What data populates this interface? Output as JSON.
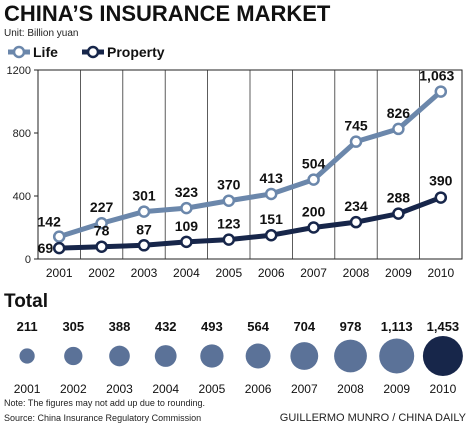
{
  "title": "CHINA’S INSURANCE MARKET",
  "unit": "Unit: Billion yuan",
  "colors": {
    "life": "#6b87ab",
    "property": "#17264a",
    "total_bubble": "#5b7298",
    "total_bubble_last": "#17264a"
  },
  "chart_data": [
    {
      "type": "line",
      "x": [
        "2001",
        "2002",
        "2003",
        "2004",
        "2005",
        "2006",
        "2007",
        "2008",
        "2009",
        "2010"
      ],
      "series": [
        {
          "name": "Life",
          "values": [
            142,
            227,
            301,
            323,
            370,
            413,
            504,
            745,
            826,
            1063
          ]
        },
        {
          "name": "Property",
          "values": [
            69,
            78,
            87,
            109,
            123,
            151,
            200,
            234,
            288,
            390
          ]
        }
      ],
      "data_labels": {
        "Life": [
          "142",
          "227",
          "301",
          "323",
          "370",
          "413",
          "504",
          "745",
          "826",
          "1,063"
        ],
        "Property": [
          "69",
          "78",
          "87",
          "109",
          "123",
          "151",
          "200",
          "234",
          "288",
          "390"
        ]
      },
      "yticks": [
        "0",
        "400",
        "800",
        "1200"
      ],
      "ylim": [
        0,
        1200
      ],
      "legend": "top-left",
      "grid": "vertical"
    },
    {
      "type": "bubble",
      "title": "Total",
      "categories": [
        "2001",
        "2002",
        "2003",
        "2004",
        "2005",
        "2006",
        "2007",
        "2008",
        "2009",
        "2010"
      ],
      "values": [
        211,
        305,
        388,
        432,
        493,
        564,
        704,
        978,
        1113,
        1453
      ],
      "value_labels": [
        "211",
        "305",
        "388",
        "432",
        "493",
        "564",
        "704",
        "978",
        "1,113",
        "1,453"
      ]
    }
  ],
  "notes": {
    "rounding": "Note: The figures may not add up due to rounding.",
    "source": "Source: China Insurance Regulatory Commission",
    "credit": "GUILLERMO MUNRO / CHINA DAILY"
  }
}
